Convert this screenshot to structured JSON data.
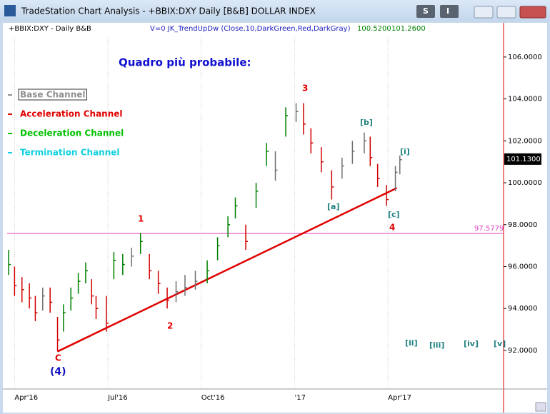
{
  "window_title": "TradeStation Chart Analysis - +BBIX:DXY Daily [B&B] DOLLAR INDEX",
  "buttons": [
    "S",
    "I"
  ],
  "header": {
    "symbol": "+BBIX:DXY - Daily  B&B",
    "study": "V=0  JK_TrendUpDw  (Close,10,DarkGreen,Red,DarkGray)",
    "value1": "100.5200",
    "value2": "101.2600"
  },
  "chart_data": {
    "type": "ohlc",
    "title": "Quadro più probabile:",
    "legend": [
      {
        "name": "Base Channel",
        "color": "#909090"
      },
      {
        "name": "Acceleration Channel",
        "color": "#e00000"
      },
      {
        "name": "Deceleration Channel",
        "color": "#00c000"
      },
      {
        "name": "Termination Channel",
        "color": "#10d0e0"
      }
    ],
    "x": [
      -4,
      0,
      5,
      10,
      14,
      19,
      24,
      29,
      33,
      38,
      43,
      48,
      52,
      55,
      62,
      67,
      73,
      79,
      85,
      91,
      97,
      103,
      109,
      115,
      122,
      130,
      137,
      144,
      149,
      156,
      163,
      170,
      176,
      183,
      190,
      195,
      200,
      207,
      214,
      221,
      228,
      236,
      240,
      245,
      251,
      257,
      260
    ],
    "close": [
      96.1,
      95.1,
      94.9,
      94.5,
      93.8,
      94.6,
      94.3,
      92.5,
      93.8,
      94.5,
      95.3,
      95.8,
      94.6,
      94.0,
      93.3,
      96.3,
      96.1,
      96.5,
      97.2,
      95.8,
      95.2,
      94.4,
      94.8,
      95.0,
      95.3,
      95.8,
      97.0,
      98.0,
      98.9,
      97.2,
      99.6,
      101.5,
      100.6,
      103.2,
      103.4,
      102.8,
      101.9,
      101.0,
      99.8,
      100.8,
      101.5,
      102.0,
      101.2,
      100.2,
      99.2,
      100.5,
      101.1
    ],
    "high": [
      96.8,
      96.0,
      95.5,
      95.2,
      94.6,
      95.0,
      95.0,
      93.6,
      94.2,
      95.0,
      95.7,
      96.2,
      95.4,
      94.6,
      94.6,
      96.7,
      96.6,
      96.9,
      97.6,
      96.6,
      95.8,
      95.0,
      95.3,
      95.6,
      95.8,
      96.3,
      97.4,
      98.4,
      99.3,
      98.0,
      100.0,
      101.9,
      101.5,
      103.6,
      103.8,
      103.8,
      102.6,
      101.7,
      100.6,
      101.2,
      102.0,
      102.4,
      102.2,
      100.9,
      99.9,
      100.8,
      101.3
    ],
    "low": [
      95.6,
      94.6,
      94.3,
      94.0,
      93.4,
      93.9,
      93.8,
      91.95,
      92.9,
      93.9,
      94.7,
      95.2,
      94.2,
      93.5,
      92.9,
      95.4,
      95.6,
      96.0,
      96.6,
      95.4,
      94.7,
      94.0,
      94.3,
      94.6,
      94.9,
      95.2,
      96.3,
      97.4,
      98.3,
      96.8,
      98.8,
      100.8,
      100.1,
      102.2,
      102.9,
      102.3,
      101.4,
      100.5,
      99.2,
      100.2,
      100.9,
      101.4,
      100.8,
      99.8,
      98.9,
      99.6,
      100.4
    ],
    "colors": [
      "#008000",
      "#d00000",
      "#d00000",
      "#d00000",
      "#d00000",
      "#707070",
      "#d00000",
      "#d00000",
      "#008000",
      "#008000",
      "#008000",
      "#008000",
      "#d00000",
      "#d00000",
      "#d00000",
      "#008000",
      "#008000",
      "#707070",
      "#008000",
      "#d00000",
      "#d00000",
      "#d00000",
      "#707070",
      "#707070",
      "#707070",
      "#008000",
      "#008000",
      "#008000",
      "#008000",
      "#d00000",
      "#008000",
      "#008000",
      "#707070",
      "#008000",
      "#707070",
      "#d00000",
      "#d00000",
      "#d00000",
      "#d00000",
      "#707070",
      "#707070",
      "#707070",
      "#d00000",
      "#d00000",
      "#d00000",
      "#707070",
      "#707070"
    ],
    "trendline": {
      "x": [
        29,
        258
      ],
      "y": [
        91.95,
        99.75
      ],
      "color": "#e00000"
    },
    "hline": {
      "value": 97.5779,
      "color": "#e040c0"
    },
    "last_price": {
      "value": 101.13,
      "label": "101.1300"
    },
    "waves": [
      "C",
      "(4)",
      "1",
      "2",
      "3",
      "[a]",
      "[b]",
      "[c]",
      "4",
      "[i]",
      "[ii]",
      "[iii]",
      "[iv]",
      "[v]"
    ],
    "xlim": [
      -5,
      330
    ],
    "ylim": [
      90.16,
      107.63
    ],
    "xticks": [
      {
        "value": 0,
        "label": "Apr'16"
      },
      {
        "value": 63,
        "label": "Jul'16"
      },
      {
        "value": 126,
        "label": "Oct'16"
      },
      {
        "value": 189,
        "label": "'17"
      },
      {
        "value": 252,
        "label": "Apr'17"
      }
    ],
    "yticks": [
      {
        "value": 92,
        "label": "92.0000"
      },
      {
        "value": 94,
        "label": "94.0000"
      },
      {
        "value": 96,
        "label": "96.0000"
      },
      {
        "value": 98,
        "label": "98.0000"
      },
      {
        "value": 100,
        "label": "100.0000"
      },
      {
        "value": 102,
        "label": "102.0000"
      },
      {
        "value": 104,
        "label": "104.0000"
      },
      {
        "value": 106,
        "label": "106.0000"
      }
    ],
    "grid": true
  }
}
